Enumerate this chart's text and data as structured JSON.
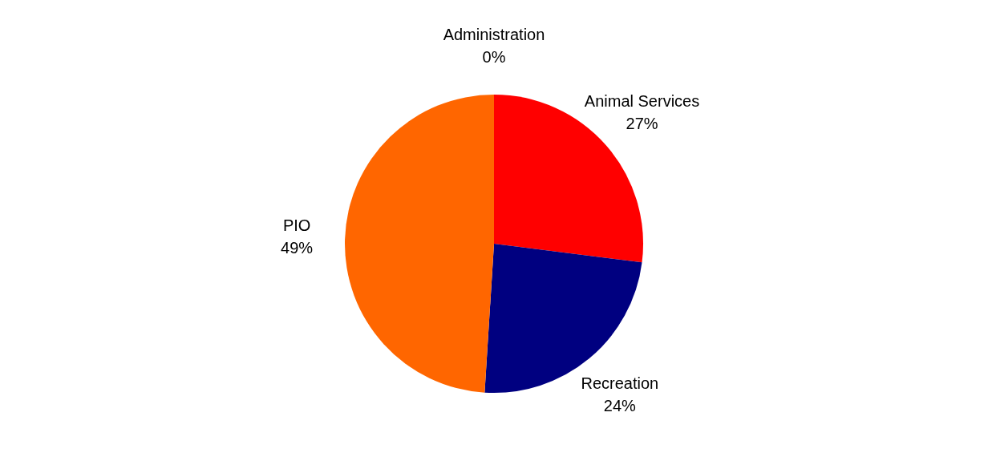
{
  "chart_data": {
    "type": "pie",
    "categories": [
      "Administration",
      "Animal Services",
      "Recreation",
      "PIO"
    ],
    "values": [
      0,
      27,
      24,
      49
    ],
    "colors": [
      "#9999ff",
      "#ff0000",
      "#000080",
      "#ff6600"
    ],
    "value_labels": [
      "0%",
      "27%",
      "24%",
      "49%"
    ],
    "legend": false
  }
}
